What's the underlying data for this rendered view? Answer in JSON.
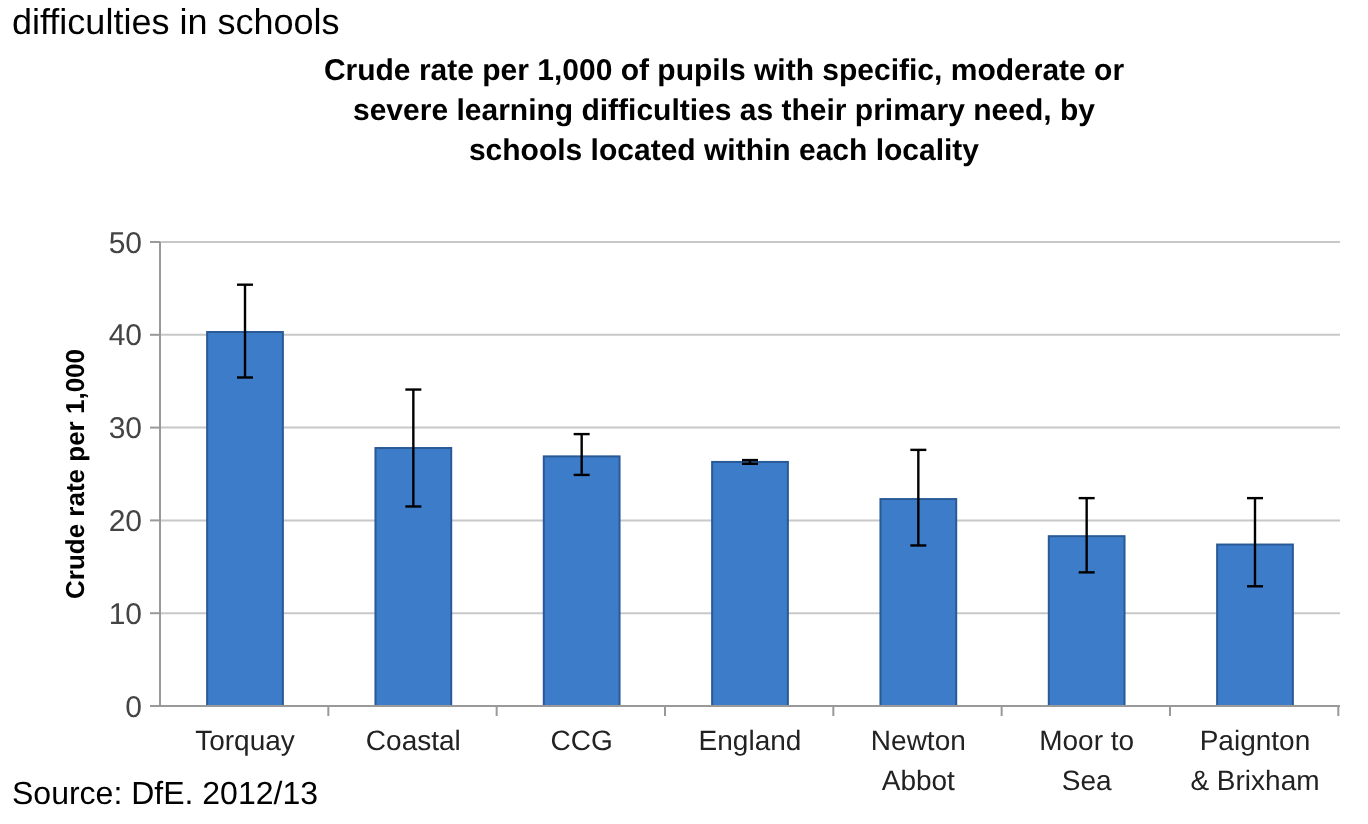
{
  "chart_data": {
    "type": "bar",
    "title": "Crude rate per 1,000 of pupils with specific, moderate or severe learning difficulties as their primary need, by schools located within each locality",
    "ylabel": "Crude rate per 1,000",
    "categories": [
      "Torquay",
      "Coastal",
      "CCG",
      "England",
      "Newton Abbot",
      "Moor to Sea",
      "Paignton & Brixham"
    ],
    "values": [
      40.3,
      27.8,
      26.9,
      26.3,
      22.3,
      18.3,
      17.4
    ],
    "errors": [
      [
        35.4,
        45.4
      ],
      [
        21.5,
        34.1
      ],
      [
        24.9,
        29.3
      ],
      [
        26.1,
        26.5
      ],
      [
        17.3,
        27.6
      ],
      [
        14.4,
        22.4
      ],
      [
        12.9,
        22.4
      ]
    ],
    "color": "#3d7cc9",
    "ylim": [
      0,
      50
    ],
    "yticks": [
      0,
      10,
      20,
      30,
      40,
      50
    ],
    "grid": "y",
    "annotations": [
      "difficulties in schools",
      "Source: DfE. 2012/13"
    ]
  }
}
